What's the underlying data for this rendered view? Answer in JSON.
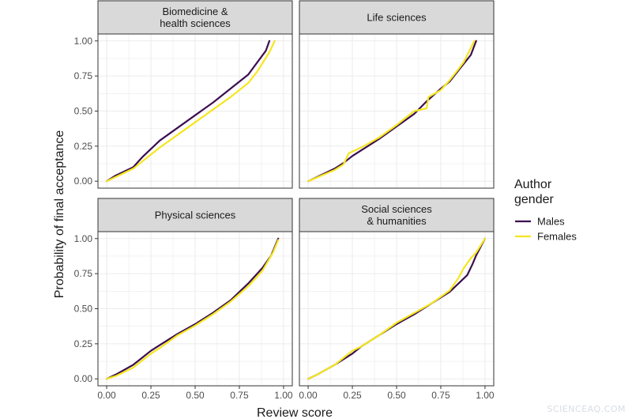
{
  "chart_data": {
    "type": "line",
    "ylabel": "Probability of final acceptance",
    "xlabel": "Review score",
    "xlim": [
      0,
      1
    ],
    "ylim": [
      0,
      1
    ],
    "x_ticks": [
      "0.00",
      "0.25",
      "0.50",
      "0.75",
      "1.00"
    ],
    "y_ticks": [
      "0.00",
      "0.25",
      "0.50",
      "0.75",
      "1.00"
    ],
    "grid": true,
    "legend": {
      "title_lines": [
        "Author",
        "gender"
      ],
      "position": "right",
      "entries": [
        {
          "name": "Males",
          "color": "#3b0f4f"
        },
        {
          "name": "Females",
          "color": "#f5e61f"
        }
      ]
    },
    "panels": [
      {
        "title_lines": [
          "Biomedicine &",
          "health sciences"
        ],
        "series": [
          {
            "name": "Males",
            "x": [
              0.0,
              0.05,
              0.15,
              0.2,
              0.3,
              0.4,
              0.5,
              0.6,
              0.7,
              0.8,
              0.9,
              0.92
            ],
            "y": [
              0.0,
              0.04,
              0.1,
              0.17,
              0.29,
              0.38,
              0.47,
              0.56,
              0.66,
              0.76,
              0.93,
              1.0
            ]
          },
          {
            "name": "Females",
            "x": [
              0.0,
              0.05,
              0.15,
              0.2,
              0.3,
              0.4,
              0.5,
              0.6,
              0.7,
              0.8,
              0.85,
              0.92,
              0.95
            ],
            "y": [
              0.0,
              0.03,
              0.09,
              0.14,
              0.24,
              0.33,
              0.42,
              0.51,
              0.6,
              0.7,
              0.78,
              0.92,
              1.0
            ]
          }
        ]
      },
      {
        "title_lines": [
          "Life sciences"
        ],
        "series": [
          {
            "name": "Males",
            "x": [
              0.0,
              0.15,
              0.2,
              0.25,
              0.3,
              0.4,
              0.5,
              0.6,
              0.67,
              0.75,
              0.8,
              0.85,
              0.92,
              0.95
            ],
            "y": [
              0.0,
              0.09,
              0.13,
              0.18,
              0.22,
              0.3,
              0.39,
              0.48,
              0.57,
              0.66,
              0.71,
              0.79,
              0.9,
              1.0
            ]
          },
          {
            "name": "Females",
            "x": [
              0.0,
              0.15,
              0.2,
              0.23,
              0.3,
              0.4,
              0.5,
              0.6,
              0.67,
              0.68,
              0.75,
              0.8,
              0.85,
              0.88,
              0.94
            ],
            "y": [
              0.0,
              0.08,
              0.12,
              0.2,
              0.24,
              0.31,
              0.4,
              0.5,
              0.52,
              0.6,
              0.65,
              0.72,
              0.8,
              0.85,
              1.0
            ]
          }
        ]
      },
      {
        "title_lines": [
          "Physical sciences"
        ],
        "series": [
          {
            "name": "Males",
            "x": [
              0.0,
              0.05,
              0.15,
              0.2,
              0.25,
              0.3,
              0.4,
              0.5,
              0.6,
              0.7,
              0.8,
              0.88,
              0.93,
              0.97
            ],
            "y": [
              0.0,
              0.03,
              0.1,
              0.15,
              0.2,
              0.24,
              0.32,
              0.39,
              0.47,
              0.56,
              0.68,
              0.79,
              0.88,
              1.0
            ]
          },
          {
            "name": "Females",
            "x": [
              0.0,
              0.05,
              0.15,
              0.2,
              0.25,
              0.3,
              0.4,
              0.5,
              0.6,
              0.7,
              0.8,
              0.88,
              0.94,
              0.97
            ],
            "y": [
              0.0,
              0.02,
              0.08,
              0.13,
              0.18,
              0.22,
              0.31,
              0.38,
              0.46,
              0.55,
              0.66,
              0.77,
              0.9,
              0.99
            ]
          }
        ]
      },
      {
        "title_lines": [
          "Social sciences",
          "& humanities"
        ],
        "series": [
          {
            "name": "Males",
            "x": [
              0.0,
              0.05,
              0.15,
              0.2,
              0.25,
              0.3,
              0.4,
              0.5,
              0.6,
              0.7,
              0.8,
              0.85,
              0.9,
              0.93,
              0.95,
              1.0
            ],
            "y": [
              0.0,
              0.03,
              0.1,
              0.14,
              0.18,
              0.23,
              0.31,
              0.39,
              0.46,
              0.54,
              0.62,
              0.68,
              0.74,
              0.82,
              0.88,
              1.0
            ]
          },
          {
            "name": "Females",
            "x": [
              0.0,
              0.05,
              0.15,
              0.2,
              0.25,
              0.3,
              0.4,
              0.5,
              0.6,
              0.7,
              0.8,
              0.85,
              0.88,
              0.92,
              0.95,
              1.0
            ],
            "y": [
              0.0,
              0.03,
              0.1,
              0.15,
              0.2,
              0.23,
              0.31,
              0.4,
              0.47,
              0.54,
              0.63,
              0.72,
              0.79,
              0.86,
              0.9,
              1.0
            ]
          }
        ]
      }
    ]
  },
  "watermark": "SCIENCEAQ.COM"
}
